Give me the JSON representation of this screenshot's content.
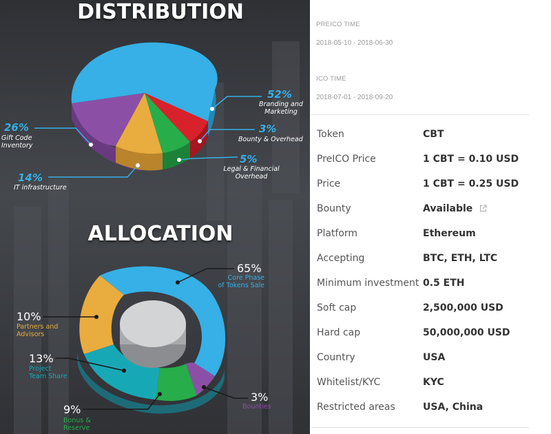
{
  "infographic": {
    "distribution_title": "DISTRIBUTION",
    "allocation_title": "ALLOCATION",
    "distribution": [
      {
        "percent": "52%",
        "label_line1": "Branding and",
        "label_line2": "Marketing",
        "value": 52,
        "color": "#36b0e6"
      },
      {
        "percent": "26%",
        "label_line1": "Gift Code",
        "label_line2": "Inventory",
        "value": 26,
        "color": "#8c4fa6"
      },
      {
        "percent": "14%",
        "label_line1": "IT infrastructure",
        "label_line2": "",
        "value": 14,
        "color": "#e9ac3f"
      },
      {
        "percent": "5%",
        "label_line1": "Legal & Financial",
        "label_line2": "Overhead",
        "value": 5,
        "color": "#27ad4a"
      },
      {
        "percent": "3%",
        "label_line1": "Bounty & Overhead",
        "label_line2": "",
        "value": 3,
        "color": "#d8222b"
      }
    ],
    "allocation": [
      {
        "percent": "65%",
        "label_line1": "Core Phase",
        "label_line2": "of Tokens Sale",
        "value": 65,
        "color": "#36b0e6"
      },
      {
        "percent": "10%",
        "label_line1": "Partners and",
        "label_line2": "Advisors",
        "value": 10,
        "color": "#e9ac3f"
      },
      {
        "percent": "13%",
        "label_line1": "Project",
        "label_line2": "Team Share",
        "value": 13,
        "color": "#17a8b6"
      },
      {
        "percent": "9%",
        "label_line1": "Bonus &",
        "label_line2": "Reserve",
        "value": 9,
        "color": "#27ad4a"
      },
      {
        "percent": "3%",
        "label_line1": "Bounties",
        "label_line2": "",
        "value": 3,
        "color": "#8c4fa6"
      }
    ]
  },
  "details": {
    "preico_label": "PREICO TIME",
    "preico_dates": "2018-05-10 - 2018-06-30",
    "ico_label": "ICO TIME",
    "ico_dates": "2018-07-01 - 2018-09-20",
    "rows": [
      {
        "key": "Token",
        "value": "CBT"
      },
      {
        "key": "PreICO Price",
        "value": "1 CBT = 0.10 USD"
      },
      {
        "key": "Price",
        "value": "1 CBT = 0.25 USD"
      },
      {
        "key": "Bounty",
        "value": "Available",
        "icon": "external-link-icon"
      },
      {
        "key": "Platform",
        "value": "Ethereum"
      },
      {
        "key": "Accepting",
        "value": "BTC, ETH, LTC"
      },
      {
        "key": "Minimum investment",
        "value": "0.5 ETH"
      },
      {
        "key": "Soft cap",
        "value": "2,500,000 USD"
      },
      {
        "key": "Hard cap",
        "value": "50,000,000 USD"
      },
      {
        "key": "Country",
        "value": "USA"
      },
      {
        "key": "Whitelist/KYC",
        "value": "KYC"
      },
      {
        "key": "Restricted areas",
        "value": "USA, China"
      }
    ]
  }
}
